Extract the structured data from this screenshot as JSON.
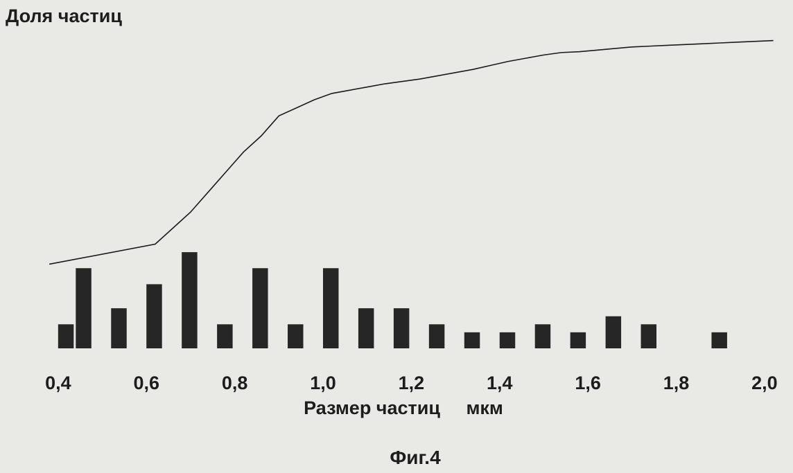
{
  "figure": {
    "caption": "Фиг.4"
  },
  "chart_data": {
    "type": "bar",
    "ylabel": "Доля частиц",
    "xlabel": "Размер частиц     мкм",
    "xlim": [
      0.35,
      2.03
    ],
    "tick_labels": [
      "0,4",
      "0,6",
      "0,8",
      "1,0",
      "1,2",
      "1,4",
      "1,6",
      "1,8",
      "2,0"
    ],
    "tick_values": [
      0.4,
      0.6,
      0.8,
      1.0,
      1.2,
      1.4,
      1.6,
      1.8,
      2.0
    ],
    "bin_width": 0.04,
    "bin_centers": [
      0.38,
      0.42,
      0.46,
      0.5,
      0.54,
      0.58,
      0.62,
      0.66,
      0.7,
      0.74,
      0.78,
      0.82,
      0.86,
      0.9,
      0.94,
      0.98,
      1.02,
      1.06,
      1.1,
      1.14,
      1.18,
      1.22,
      1.26,
      1.3,
      1.34,
      1.38,
      1.42,
      1.46,
      1.5,
      1.54,
      1.58,
      1.62,
      1.66,
      1.7,
      1.74,
      1.78,
      1.82,
      1.86,
      1.9,
      1.94,
      1.98
    ],
    "values": [
      0.0,
      3.0,
      10.0,
      0.0,
      5.0,
      0.0,
      8.0,
      0.0,
      12.0,
      0.0,
      3.0,
      0.0,
      10.0,
      0.0,
      3.0,
      0.0,
      10.0,
      0.0,
      5.0,
      0.0,
      5.0,
      0.0,
      3.0,
      0.0,
      2.0,
      0.0,
      2.0,
      0.0,
      3.0,
      0.0,
      2.0,
      0.0,
      4.0,
      0.0,
      3.0,
      0.0,
      0.0,
      0.0,
      2.0,
      0.0,
      0.0
    ],
    "cumulative_line": {
      "x": [
        0.38,
        0.62,
        0.66,
        0.7,
        0.74,
        0.78,
        0.82,
        0.86,
        0.9,
        0.94,
        0.98,
        1.02,
        1.06,
        1.1,
        1.14,
        1.18,
        1.22,
        1.26,
        1.3,
        1.34,
        1.38,
        1.42,
        1.46,
        1.5,
        1.54,
        1.58,
        1.62,
        1.66,
        1.7,
        1.74,
        1.78,
        1.82,
        1.86,
        1.9,
        1.94,
        1.98,
        2.02
      ],
      "y": [
        10.5,
        13.0,
        15.0,
        17.0,
        19.5,
        22.0,
        24.5,
        26.5,
        29.0,
        30.0,
        31.0,
        31.8,
        32.2,
        32.6,
        33.0,
        33.3,
        33.6,
        34.0,
        34.4,
        34.8,
        35.3,
        35.8,
        36.2,
        36.6,
        36.9,
        37.0,
        37.2,
        37.4,
        37.6,
        37.7,
        37.8,
        37.9,
        38.0,
        38.1,
        38.2,
        38.3,
        38.4
      ]
    },
    "ylim": [
      0,
      40
    ],
    "grid": false,
    "legend": "none",
    "colors": {
      "bar": "#262626",
      "line": "#1a1a1a",
      "background": "#e9e9e6",
      "text": "#1d1d1d"
    }
  }
}
